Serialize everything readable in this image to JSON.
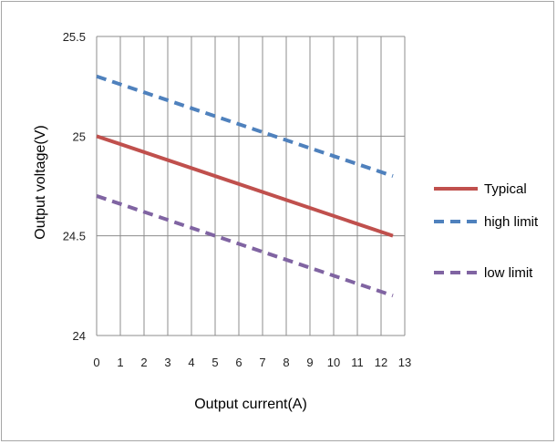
{
  "chart_data": {
    "type": "line",
    "xlabel": "Output current(A)",
    "ylabel": "Output voltage(V)",
    "xlim": [
      0,
      13
    ],
    "ylim": [
      24,
      25.5
    ],
    "x_ticks": [
      "0",
      "1",
      "2",
      "3",
      "4",
      "5",
      "6",
      "7",
      "8",
      "9",
      "10",
      "11",
      "12",
      "13"
    ],
    "y_ticks": [
      "24",
      "24.5",
      "25",
      "25.5"
    ],
    "grid": {
      "vertical": true,
      "horizontal": true
    },
    "legend_position": "right",
    "series": [
      {
        "name": "Typical",
        "style": "solid",
        "color": "#c0504d",
        "x": [
          0,
          12.5
        ],
        "y": [
          25.0,
          24.5
        ]
      },
      {
        "name": "high limit",
        "style": "dashed",
        "color": "#4f81bd",
        "x": [
          0,
          12.5
        ],
        "y": [
          25.3,
          24.8
        ]
      },
      {
        "name": "low limit",
        "style": "dashed",
        "color": "#8064a2",
        "x": [
          0,
          12.5
        ],
        "y": [
          24.7,
          24.2
        ]
      }
    ]
  }
}
